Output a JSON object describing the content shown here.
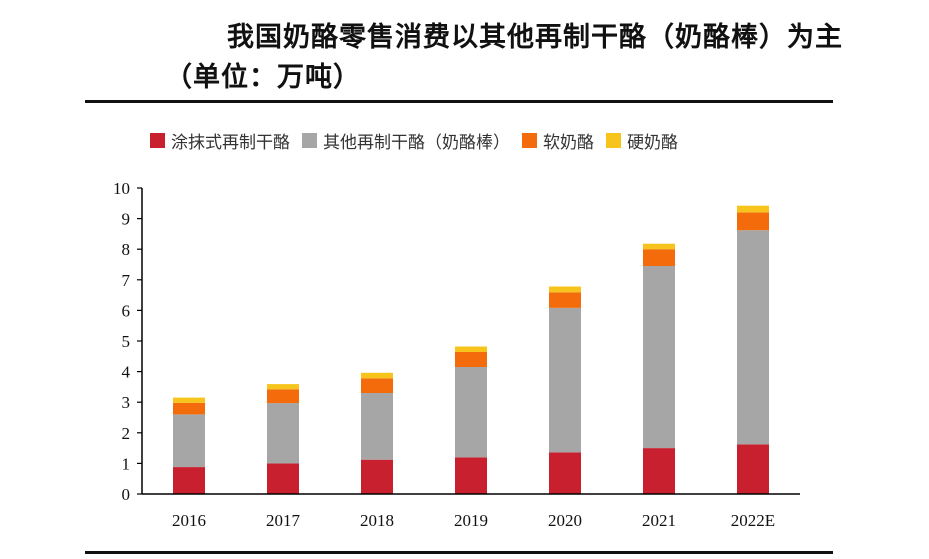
{
  "title": "我国奶酪零售消费以其他再制干酪（奶酪棒）为主（单位：万吨）",
  "chart_data": {
    "type": "bar",
    "stacked": true,
    "categories": [
      "2016",
      "2017",
      "2018",
      "2019",
      "2020",
      "2021",
      "2022E"
    ],
    "ylim": [
      0,
      10
    ],
    "yticks": [
      "0",
      "1",
      "2",
      "3",
      "4",
      "5",
      "6",
      "7",
      "8",
      "9",
      "10"
    ],
    "grid": false,
    "legend_position": "top",
    "series": [
      {
        "name": "涂抹式再制干酪",
        "color": "#c8202f",
        "values": [
          0.88,
          1.0,
          1.12,
          1.2,
          1.36,
          1.5,
          1.62
        ]
      },
      {
        "name": "其他再制干酪（奶酪棒）",
        "color": "#a6a6a6",
        "values": [
          1.72,
          1.97,
          2.18,
          2.95,
          4.72,
          5.95,
          7.0
        ]
      },
      {
        "name": "软奶酪",
        "color": "#f46b0c",
        "values": [
          0.38,
          0.45,
          0.48,
          0.49,
          0.51,
          0.55,
          0.58
        ]
      },
      {
        "name": "硬奶酪",
        "color": "#f7c41b",
        "values": [
          0.17,
          0.17,
          0.18,
          0.18,
          0.19,
          0.18,
          0.22
        ]
      }
    ]
  }
}
